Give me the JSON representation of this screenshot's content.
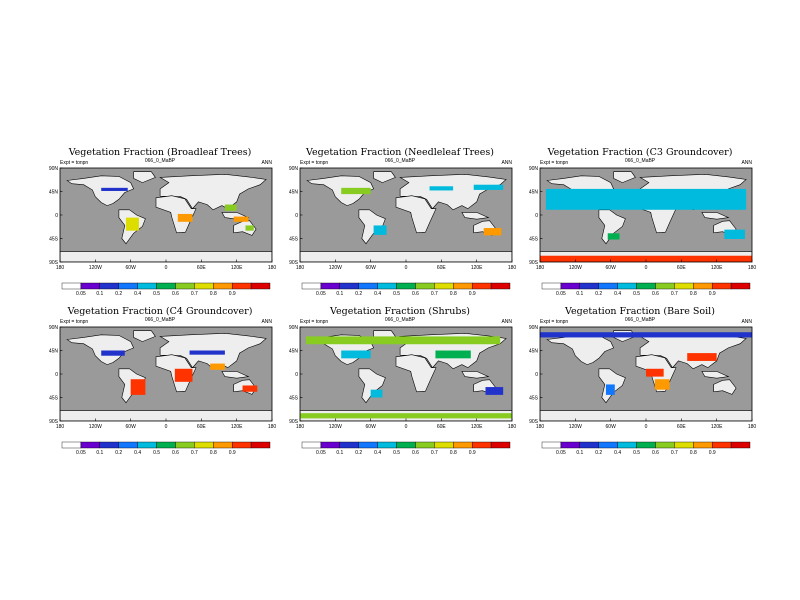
{
  "chart_data": [
    {
      "type": "heatmap",
      "title": "Vegetation Fraction (Broadleaf Trees)",
      "subtitle": "066_0_MaBP",
      "left_label": "Expt = tonpn",
      "season": "ANN",
      "lat_ticks": [
        "90N",
        "45N",
        "0",
        "45S",
        "90S"
      ],
      "lon_ticks": [
        "180",
        "120W",
        "60W",
        "0",
        "60E",
        "120E",
        "180"
      ],
      "levels": [
        0.05,
        0.1,
        0.2,
        0.3,
        0.4,
        0.5,
        0.6,
        0.7,
        0.8,
        0.9
      ],
      "level_labels": [
        "0.05",
        "0.1",
        "0.2",
        "0.4",
        "0.5",
        "0.6",
        "0.7",
        "0.8",
        "0.9"
      ],
      "features": [
        {
          "lon": -110,
          "lat": 52,
          "w": 45,
          "h": 6,
          "v": 0.15
        },
        {
          "lon": -68,
          "lat": -5,
          "w": 22,
          "h": 25,
          "v": 0.6
        },
        {
          "lon": 20,
          "lat": 2,
          "w": 25,
          "h": 15,
          "v": 0.7
        },
        {
          "lon": 100,
          "lat": 20,
          "w": 20,
          "h": 12,
          "v": 0.55
        },
        {
          "lon": 115,
          "lat": -3,
          "w": 25,
          "h": 10,
          "v": 0.7
        },
        {
          "lon": 135,
          "lat": -20,
          "w": 14,
          "h": 10,
          "v": 0.5
        }
      ]
    },
    {
      "type": "heatmap",
      "title": "Vegetation Fraction (Needleleaf Trees)",
      "subtitle": "066_0_MaBP",
      "left_label": "Expt = tonpn",
      "season": "ANN",
      "lat_ticks": [
        "90N",
        "45N",
        "0",
        "45S",
        "90S"
      ],
      "lon_ticks": [
        "180",
        "120W",
        "60W",
        "0",
        "60E",
        "120E",
        "180"
      ],
      "levels": [
        0.05,
        0.1,
        0.2,
        0.3,
        0.4,
        0.5,
        0.6,
        0.7,
        0.8,
        0.9
      ],
      "level_labels": [
        "0.05",
        "0.1",
        "0.2",
        "0.4",
        "0.5",
        "0.6",
        "0.7",
        "0.8",
        "0.9"
      ],
      "features": [
        {
          "lon": -110,
          "lat": 52,
          "w": 50,
          "h": 12,
          "v": 0.55
        },
        {
          "lon": 40,
          "lat": 55,
          "w": 40,
          "h": 8,
          "v": 0.35
        },
        {
          "lon": 115,
          "lat": 58,
          "w": 50,
          "h": 10,
          "v": 0.35
        },
        {
          "lon": -55,
          "lat": -20,
          "w": 22,
          "h": 18,
          "v": 0.3
        },
        {
          "lon": 132,
          "lat": -25,
          "w": 30,
          "h": 14,
          "v": 0.7
        }
      ]
    },
    {
      "type": "heatmap",
      "title": "Vegetation Fraction (C3 Groundcover)",
      "subtitle": "066_0_MaBP",
      "left_label": "Expt = tonpn",
      "season": "ANN",
      "lat_ticks": [
        "90N",
        "45N",
        "0",
        "45S",
        "90S"
      ],
      "lon_ticks": [
        "180",
        "120W",
        "60W",
        "0",
        "60E",
        "120E",
        "180"
      ],
      "levels": [
        0.05,
        0.1,
        0.2,
        0.3,
        0.4,
        0.5,
        0.6,
        0.7,
        0.8,
        0.9
      ],
      "level_labels": [
        "0.05",
        "0.1",
        "0.2",
        "0.4",
        "0.5",
        "0.6",
        "0.7",
        "0.8",
        "0.9"
      ],
      "features": [
        {
          "lon": -170,
          "lat": 50,
          "w": 340,
          "h": 40,
          "v": 0.3
        },
        {
          "lon": -65,
          "lat": -35,
          "w": 20,
          "h": 12,
          "v": 0.4
        },
        {
          "lon": 133,
          "lat": -28,
          "w": 35,
          "h": 18,
          "v": 0.3
        },
        {
          "lon": -180,
          "lat": -78,
          "w": 360,
          "h": 12,
          "v": 0.8
        }
      ]
    },
    {
      "type": "heatmap",
      "title": "Vegetation Fraction (C4 Groundcover)",
      "subtitle": "066_0_MaBP",
      "left_label": "Expt = tonpn",
      "season": "ANN",
      "lat_ticks": [
        "90N",
        "45N",
        "0",
        "45S",
        "90S"
      ],
      "lon_ticks": [
        "180",
        "120W",
        "60W",
        "0",
        "60E",
        "120E",
        "180"
      ],
      "levels": [
        0.05,
        0.1,
        0.2,
        0.3,
        0.4,
        0.5,
        0.6,
        0.7,
        0.8,
        0.9
      ],
      "level_labels": [
        "0.05",
        "0.1",
        "0.2",
        "0.4",
        "0.5",
        "0.6",
        "0.7",
        "0.8",
        "0.9"
      ],
      "features": [
        {
          "lon": -110,
          "lat": 45,
          "w": 40,
          "h": 10,
          "v": 0.1
        },
        {
          "lon": 40,
          "lat": 45,
          "w": 60,
          "h": 8,
          "v": 0.1
        },
        {
          "lon": -60,
          "lat": -10,
          "w": 25,
          "h": 30,
          "v": 0.85
        },
        {
          "lon": 15,
          "lat": 10,
          "w": 30,
          "h": 25,
          "v": 0.85
        },
        {
          "lon": 75,
          "lat": 20,
          "w": 25,
          "h": 12,
          "v": 0.75
        },
        {
          "lon": 130,
          "lat": -22,
          "w": 25,
          "h": 12,
          "v": 0.85
        }
      ]
    },
    {
      "type": "heatmap",
      "title": "Vegetation Fraction (Shrubs)",
      "subtitle": "066_0_MaBP",
      "left_label": "Expt = tonpn",
      "season": "ANN",
      "lat_ticks": [
        "90N",
        "45N",
        "0",
        "45S",
        "90S"
      ],
      "lon_ticks": [
        "180",
        "120W",
        "60W",
        "0",
        "60E",
        "120E",
        "180"
      ],
      "levels": [
        0.05,
        0.1,
        0.2,
        0.3,
        0.4,
        0.5,
        0.6,
        0.7,
        0.8,
        0.9
      ],
      "level_labels": [
        "0.05",
        "0.1",
        "0.2",
        "0.4",
        "0.5",
        "0.6",
        "0.7",
        "0.8",
        "0.9"
      ],
      "features": [
        {
          "lon": -170,
          "lat": 72,
          "w": 330,
          "h": 15,
          "v": 0.5
        },
        {
          "lon": -110,
          "lat": 45,
          "w": 50,
          "h": 15,
          "v": 0.35
        },
        {
          "lon": 50,
          "lat": 45,
          "w": 60,
          "h": 15,
          "v": 0.45
        },
        {
          "lon": -60,
          "lat": -30,
          "w": 20,
          "h": 15,
          "v": 0.3
        },
        {
          "lon": -180,
          "lat": -75,
          "w": 360,
          "h": 10,
          "v": 0.5
        },
        {
          "lon": 135,
          "lat": -25,
          "w": 30,
          "h": 15,
          "v": 0.15
        }
      ]
    },
    {
      "type": "heatmap",
      "title": "Vegetation Fraction (Bare Soil)",
      "subtitle": "066_0_MaBP",
      "left_label": "Expt = tonpn",
      "season": "ANN",
      "lat_ticks": [
        "90N",
        "45N",
        "0",
        "45S",
        "90S"
      ],
      "lon_ticks": [
        "180",
        "120W",
        "60W",
        "0",
        "60E",
        "120E",
        "180"
      ],
      "levels": [
        0.05,
        0.1,
        0.2,
        0.3,
        0.4,
        0.5,
        0.6,
        0.7,
        0.8,
        0.9
      ],
      "level_labels": [
        "0.05",
        "0.1",
        "0.2",
        "0.4",
        "0.5",
        "0.6",
        "0.7",
        "0.8",
        "0.9"
      ],
      "features": [
        {
          "lon": -180,
          "lat": 80,
          "w": 360,
          "h": 10,
          "v": 0.1
        },
        {
          "lon": 70,
          "lat": 40,
          "w": 50,
          "h": 15,
          "v": 0.85
        },
        {
          "lon": -68,
          "lat": -20,
          "w": 15,
          "h": 20,
          "v": 0.2
        },
        {
          "lon": 0,
          "lat": 10,
          "w": 30,
          "h": 15,
          "v": 0.85
        },
        {
          "lon": 15,
          "lat": -10,
          "w": 25,
          "h": 20,
          "v": 0.75
        }
      ]
    }
  ]
}
